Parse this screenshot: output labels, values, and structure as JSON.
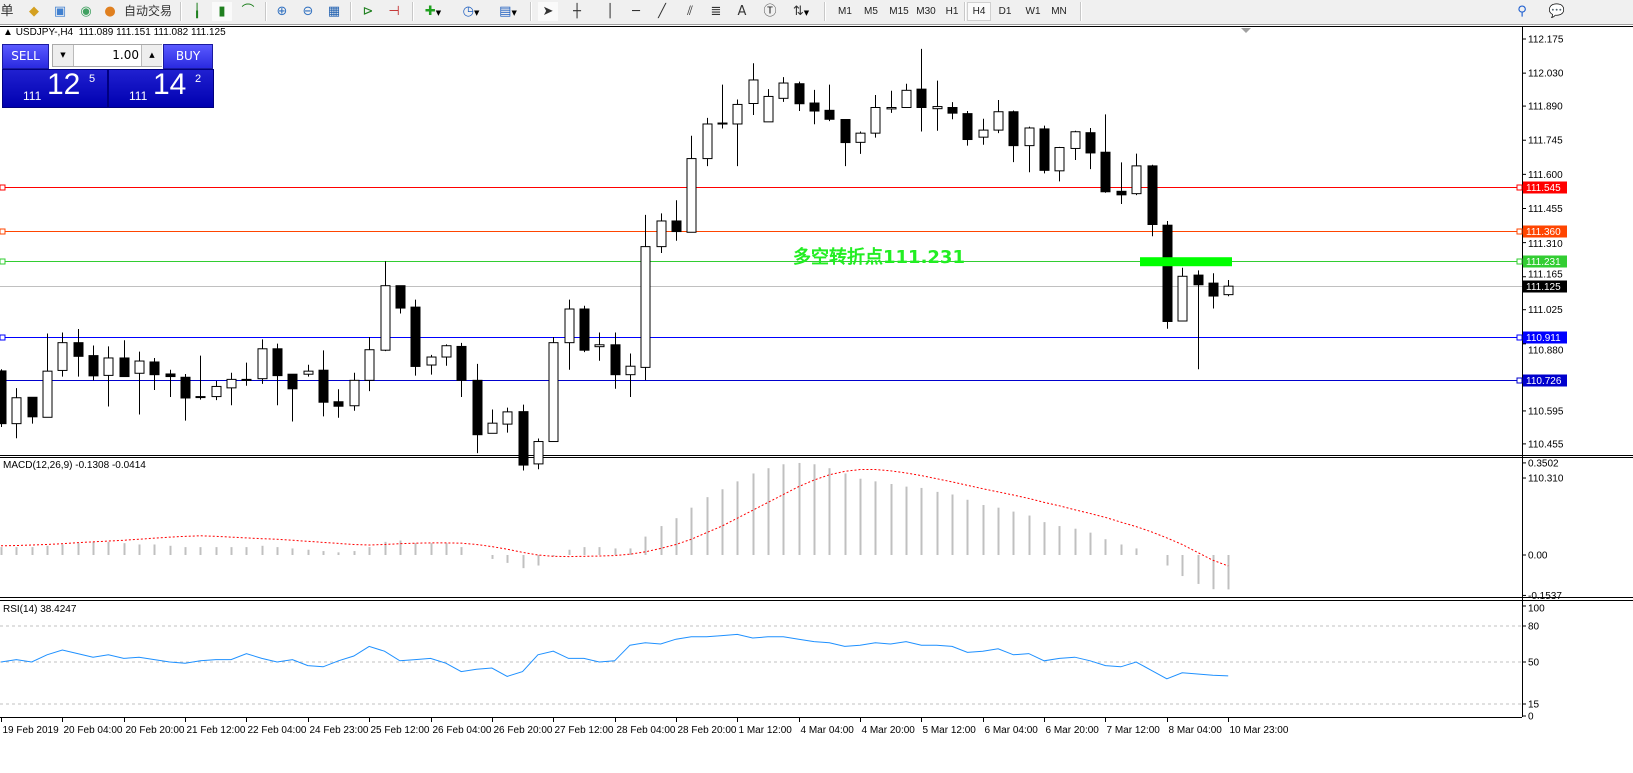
{
  "toolbar": {
    "menu_fragment": "单",
    "auto_trade_label": "自动交易",
    "icons": [
      "folder-icon",
      "navigator-icon",
      "signal-icon",
      "auto-trade-icon",
      "bar-chart-icon",
      "candlestick-icon",
      "line-chart-icon",
      "zoom-in-icon",
      "zoom-out-icon",
      "tile-windows-icon",
      "auto-scroll-icon",
      "chart-shift-icon",
      "indicators-icon",
      "periods-icon",
      "templates-icon",
      "cursor-icon",
      "crosshair-icon",
      "vertical-line-icon",
      "horizontal-line-icon",
      "trendline-icon",
      "channel-icon",
      "fibonacci-icon",
      "text-icon",
      "text-label-icon",
      "arrows-icon",
      "search-icon",
      "chat-icon"
    ],
    "text_tool_label": "A",
    "timeframes": [
      "M1",
      "M5",
      "M15",
      "M30",
      "H1",
      "H4",
      "D1",
      "W1",
      "MN"
    ],
    "active_timeframe": "H4"
  },
  "header": {
    "symbol": "USDJPY-,H4",
    "ohlc_text": "111.089 111.151 111.082 111.125"
  },
  "trade_panel": {
    "sell_label": "SELL",
    "buy_label": "BUY",
    "lot_value": "1.00",
    "sell_price": {
      "small": "111",
      "big": "12",
      "sup": "5"
    },
    "buy_price": {
      "small": "111",
      "big": "14",
      "sup": "2"
    }
  },
  "chart_data": [
    {
      "type": "candlestick",
      "symbol": "USDJPY-",
      "timeframe": "H4",
      "ohlc_columns": [
        "open",
        "high",
        "low",
        "close"
      ],
      "ohlc": [
        [
          110.765,
          110.772,
          110.527,
          110.541
        ],
        [
          110.541,
          110.692,
          110.479,
          110.651
        ],
        [
          110.653,
          110.653,
          110.541,
          110.57
        ],
        [
          110.568,
          110.924,
          110.568,
          110.764
        ],
        [
          110.767,
          110.928,
          110.741,
          110.885
        ],
        [
          110.885,
          110.943,
          110.741,
          110.827
        ],
        [
          110.83,
          110.873,
          110.725,
          110.744
        ],
        [
          110.746,
          110.869,
          110.614,
          110.82
        ],
        [
          110.82,
          110.895,
          110.741,
          110.741
        ],
        [
          110.755,
          110.847,
          110.58,
          110.807
        ],
        [
          110.803,
          110.82,
          110.684,
          110.749
        ],
        [
          110.752,
          110.77,
          110.654,
          110.741
        ],
        [
          110.738,
          110.752,
          110.554,
          110.65
        ],
        [
          110.656,
          110.83,
          110.643,
          110.654
        ],
        [
          110.656,
          110.722,
          110.641,
          110.699
        ],
        [
          110.693,
          110.757,
          110.619,
          110.729
        ],
        [
          110.726,
          110.8,
          110.702,
          110.729
        ],
        [
          110.732,
          110.899,
          110.71,
          110.859
        ],
        [
          110.859,
          110.881,
          110.619,
          110.745
        ],
        [
          110.751,
          110.751,
          110.55,
          110.689
        ],
        [
          110.751,
          110.791,
          110.741,
          110.764
        ],
        [
          110.768,
          110.852,
          110.572,
          110.632
        ],
        [
          110.634,
          110.687,
          110.566,
          110.615
        ],
        [
          110.617,
          110.757,
          110.596,
          110.725
        ],
        [
          110.725,
          110.909,
          110.679,
          110.855
        ],
        [
          110.853,
          111.231,
          110.849,
          111.127
        ],
        [
          111.127,
          111.127,
          111.009,
          111.032
        ],
        [
          111.036,
          111.068,
          110.745,
          110.784
        ],
        [
          110.79,
          110.833,
          110.749,
          110.824
        ],
        [
          110.824,
          110.878,
          110.787,
          110.872
        ],
        [
          110.869,
          110.884,
          110.654,
          110.725
        ],
        [
          110.725,
          110.795,
          110.416,
          110.494
        ],
        [
          110.5,
          110.601,
          110.5,
          110.543
        ],
        [
          110.539,
          110.609,
          110.503,
          110.591
        ],
        [
          110.592,
          110.622,
          110.342,
          110.365
        ],
        [
          110.37,
          110.478,
          110.347,
          110.465
        ],
        [
          110.465,
          110.909,
          110.465,
          110.885
        ],
        [
          110.885,
          111.068,
          110.77,
          111.028
        ],
        [
          111.028,
          111.042,
          110.845,
          110.853
        ],
        [
          110.868,
          110.928,
          110.808,
          110.876
        ],
        [
          110.876,
          110.928,
          110.689,
          110.749
        ],
        [
          110.749,
          110.839,
          110.654,
          110.785
        ],
        [
          110.78,
          111.428,
          110.726,
          111.293
        ],
        [
          111.293,
          111.434,
          111.266,
          111.402
        ],
        [
          111.402,
          111.49,
          111.318,
          111.357
        ],
        [
          111.354,
          111.764,
          111.354,
          111.667
        ],
        [
          111.667,
          111.84,
          111.635,
          111.814
        ],
        [
          111.815,
          111.981,
          111.795,
          111.818
        ],
        [
          111.814,
          111.918,
          111.635,
          111.897
        ],
        [
          111.901,
          112.072,
          111.852,
          112.001
        ],
        [
          111.823,
          111.962,
          111.823,
          111.931
        ],
        [
          111.923,
          112.013,
          111.908,
          111.988
        ],
        [
          111.985,
          111.994,
          111.869,
          111.9
        ],
        [
          111.903,
          111.959,
          111.813,
          111.869
        ],
        [
          111.872,
          111.981,
          111.826,
          111.834
        ],
        [
          111.833,
          111.833,
          111.635,
          111.735
        ],
        [
          111.736,
          111.782,
          111.687,
          111.775
        ],
        [
          111.775,
          111.937,
          111.756,
          111.884
        ],
        [
          111.878,
          111.955,
          111.861,
          111.884
        ],
        [
          111.884,
          111.985,
          111.884,
          111.957
        ],
        [
          111.962,
          112.133,
          111.782,
          111.884
        ],
        [
          111.879,
          111.998,
          111.785,
          111.888
        ],
        [
          111.884,
          111.907,
          111.834,
          111.86
        ],
        [
          111.858,
          111.869,
          111.722,
          111.748
        ],
        [
          111.758,
          111.836,
          111.726,
          111.788
        ],
        [
          111.788,
          111.916,
          111.775,
          111.866
        ],
        [
          111.866,
          111.871,
          111.652,
          111.722
        ],
        [
          111.722,
          111.803,
          111.609,
          111.797
        ],
        [
          111.793,
          111.807,
          111.604,
          111.617
        ],
        [
          111.615,
          111.717,
          111.57,
          111.714
        ],
        [
          111.71,
          111.785,
          111.661,
          111.781
        ],
        [
          111.777,
          111.797,
          111.622,
          111.691
        ],
        [
          111.694,
          111.855,
          111.522,
          111.526
        ],
        [
          111.528,
          111.651,
          111.474,
          111.513
        ],
        [
          111.518,
          111.688,
          111.512,
          111.636
        ],
        [
          111.636,
          111.641,
          111.337,
          111.387
        ],
        [
          111.384,
          111.402,
          110.944,
          110.975
        ],
        [
          110.977,
          111.203,
          110.975,
          111.167
        ],
        [
          111.172,
          111.192,
          110.772,
          111.131
        ],
        [
          111.138,
          111.18,
          111.03,
          111.083
        ],
        [
          111.089,
          111.151,
          111.082,
          111.125
        ]
      ],
      "ylim": [
        110.31,
        112.175
      ],
      "y_ticks": [
        "112.175",
        "112.030",
        "111.890",
        "111.745",
        "111.600",
        "111.455",
        "111.310",
        "111.165",
        "111.025",
        "110.880",
        "110.595",
        "110.455",
        "110.310"
      ],
      "time_labels": [
        "19 Feb 2019",
        "20 Feb 04:00",
        "20 Feb 20:00",
        "21 Feb 12:00",
        "22 Feb 04:00",
        "24 Feb 23:00",
        "25 Feb 12:00",
        "26 Feb 04:00",
        "26 Feb 20:00",
        "27 Feb 12:00",
        "28 Feb 04:00",
        "28 Feb 20:00",
        "1 Mar 12:00",
        "4 Mar 04:00",
        "4 Mar 20:00",
        "5 Mar 12:00",
        "6 Mar 04:00",
        "6 Mar 20:00",
        "7 Mar 12:00",
        "8 Mar 04:00",
        "10 Mar 23:00"
      ],
      "levels": [
        {
          "value": "111.545",
          "color": "#ff0000"
        },
        {
          "value": "111.360",
          "color": "#ff4500"
        },
        {
          "value": "111.231",
          "color": "#32cd32"
        },
        {
          "value": "111.125",
          "color": "#c0c0c0",
          "label_bg": "#000000"
        },
        {
          "value": "110.911",
          "color": "#0000ff"
        },
        {
          "value": "110.726",
          "color": "#0000cd"
        }
      ],
      "annotation": {
        "text": "多空转折点111.231",
        "color": "#22ee22",
        "at_price": 111.231
      },
      "highlight_bar": {
        "price": 111.231,
        "color": "#00ff00"
      },
      "bull_color": "#ffffff",
      "bear_color": "#000000"
    },
    {
      "type": "bar",
      "title": "MACD(12,26,9) -0.1308 -0.0414",
      "histogram": [
        0.03,
        0.03,
        0.03,
        0.035,
        0.04,
        0.045,
        0.05,
        0.05,
        0.045,
        0.04,
        0.04,
        0.035,
        0.03,
        0.03,
        0.03,
        0.03,
        0.03,
        0.035,
        0.03,
        0.025,
        0.02,
        0.015,
        0.01,
        0.015,
        0.03,
        0.05,
        0.055,
        0.045,
        0.045,
        0.045,
        0.03,
        0.0,
        -0.015,
        -0.03,
        -0.05,
        -0.04,
        -0.005,
        0.02,
        0.03,
        0.03,
        0.025,
        0.025,
        0.07,
        0.11,
        0.14,
        0.18,
        0.22,
        0.25,
        0.28,
        0.31,
        0.33,
        0.345,
        0.35,
        0.345,
        0.33,
        0.31,
        0.29,
        0.28,
        0.27,
        0.26,
        0.255,
        0.24,
        0.23,
        0.21,
        0.19,
        0.18,
        0.165,
        0.15,
        0.125,
        0.11,
        0.1,
        0.085,
        0.06,
        0.04,
        0.025,
        0.0,
        -0.04,
        -0.08,
        -0.11,
        -0.13,
        -0.1308
      ],
      "signal": [
        0.035,
        0.036,
        0.038,
        0.04,
        0.043,
        0.047,
        0.05,
        0.053,
        0.056,
        0.06,
        0.064,
        0.068,
        0.071,
        0.073,
        0.071,
        0.068,
        0.065,
        0.062,
        0.06,
        0.056,
        0.052,
        0.048,
        0.044,
        0.04,
        0.038,
        0.04,
        0.043,
        0.045,
        0.046,
        0.046,
        0.045,
        0.04,
        0.032,
        0.022,
        0.01,
        0.0,
        -0.005,
        -0.006,
        -0.005,
        -0.004,
        -0.002,
        0.003,
        0.012,
        0.025,
        0.04,
        0.06,
        0.085,
        0.11,
        0.14,
        0.17,
        0.2,
        0.23,
        0.26,
        0.285,
        0.305,
        0.318,
        0.325,
        0.325,
        0.32,
        0.312,
        0.302,
        0.29,
        0.278,
        0.265,
        0.252,
        0.24,
        0.228,
        0.215,
        0.2,
        0.187,
        0.172,
        0.158,
        0.143,
        0.125,
        0.108,
        0.088,
        0.065,
        0.04,
        0.01,
        -0.02,
        -0.0414
      ],
      "histogram_color": "#c0c0c0",
      "signal_color": "#ff0000",
      "ylim": [
        -0.1537,
        0.3502
      ],
      "y_ticks": [
        "0.3502",
        "0.00",
        "-0.1537"
      ]
    },
    {
      "type": "line",
      "title": "RSI(14) 38.4247",
      "values": [
        50,
        52,
        50,
        56,
        60,
        57,
        54,
        56,
        53,
        54,
        52,
        50,
        49,
        51,
        52,
        52,
        57,
        53,
        50,
        52,
        47,
        46,
        51,
        55,
        63,
        59,
        51,
        52,
        53,
        49,
        42,
        44,
        45,
        38,
        42,
        56,
        59,
        53,
        53,
        50,
        51,
        64,
        66,
        65,
        69,
        71,
        71,
        72,
        73,
        70,
        71,
        71,
        69,
        67,
        66,
        63,
        64,
        66,
        65,
        67,
        64,
        64,
        63,
        58,
        59,
        61,
        56,
        57,
        51,
        53,
        54,
        51,
        47,
        46,
        50,
        43,
        36,
        41,
        40,
        39,
        38.4247
      ],
      "line_color": "#1e90ff",
      "ylim": [
        0,
        100
      ],
      "y_ticks": [
        "100",
        "80",
        "50",
        "15",
        "0"
      ],
      "levels": [
        80,
        50,
        15
      ]
    }
  ]
}
